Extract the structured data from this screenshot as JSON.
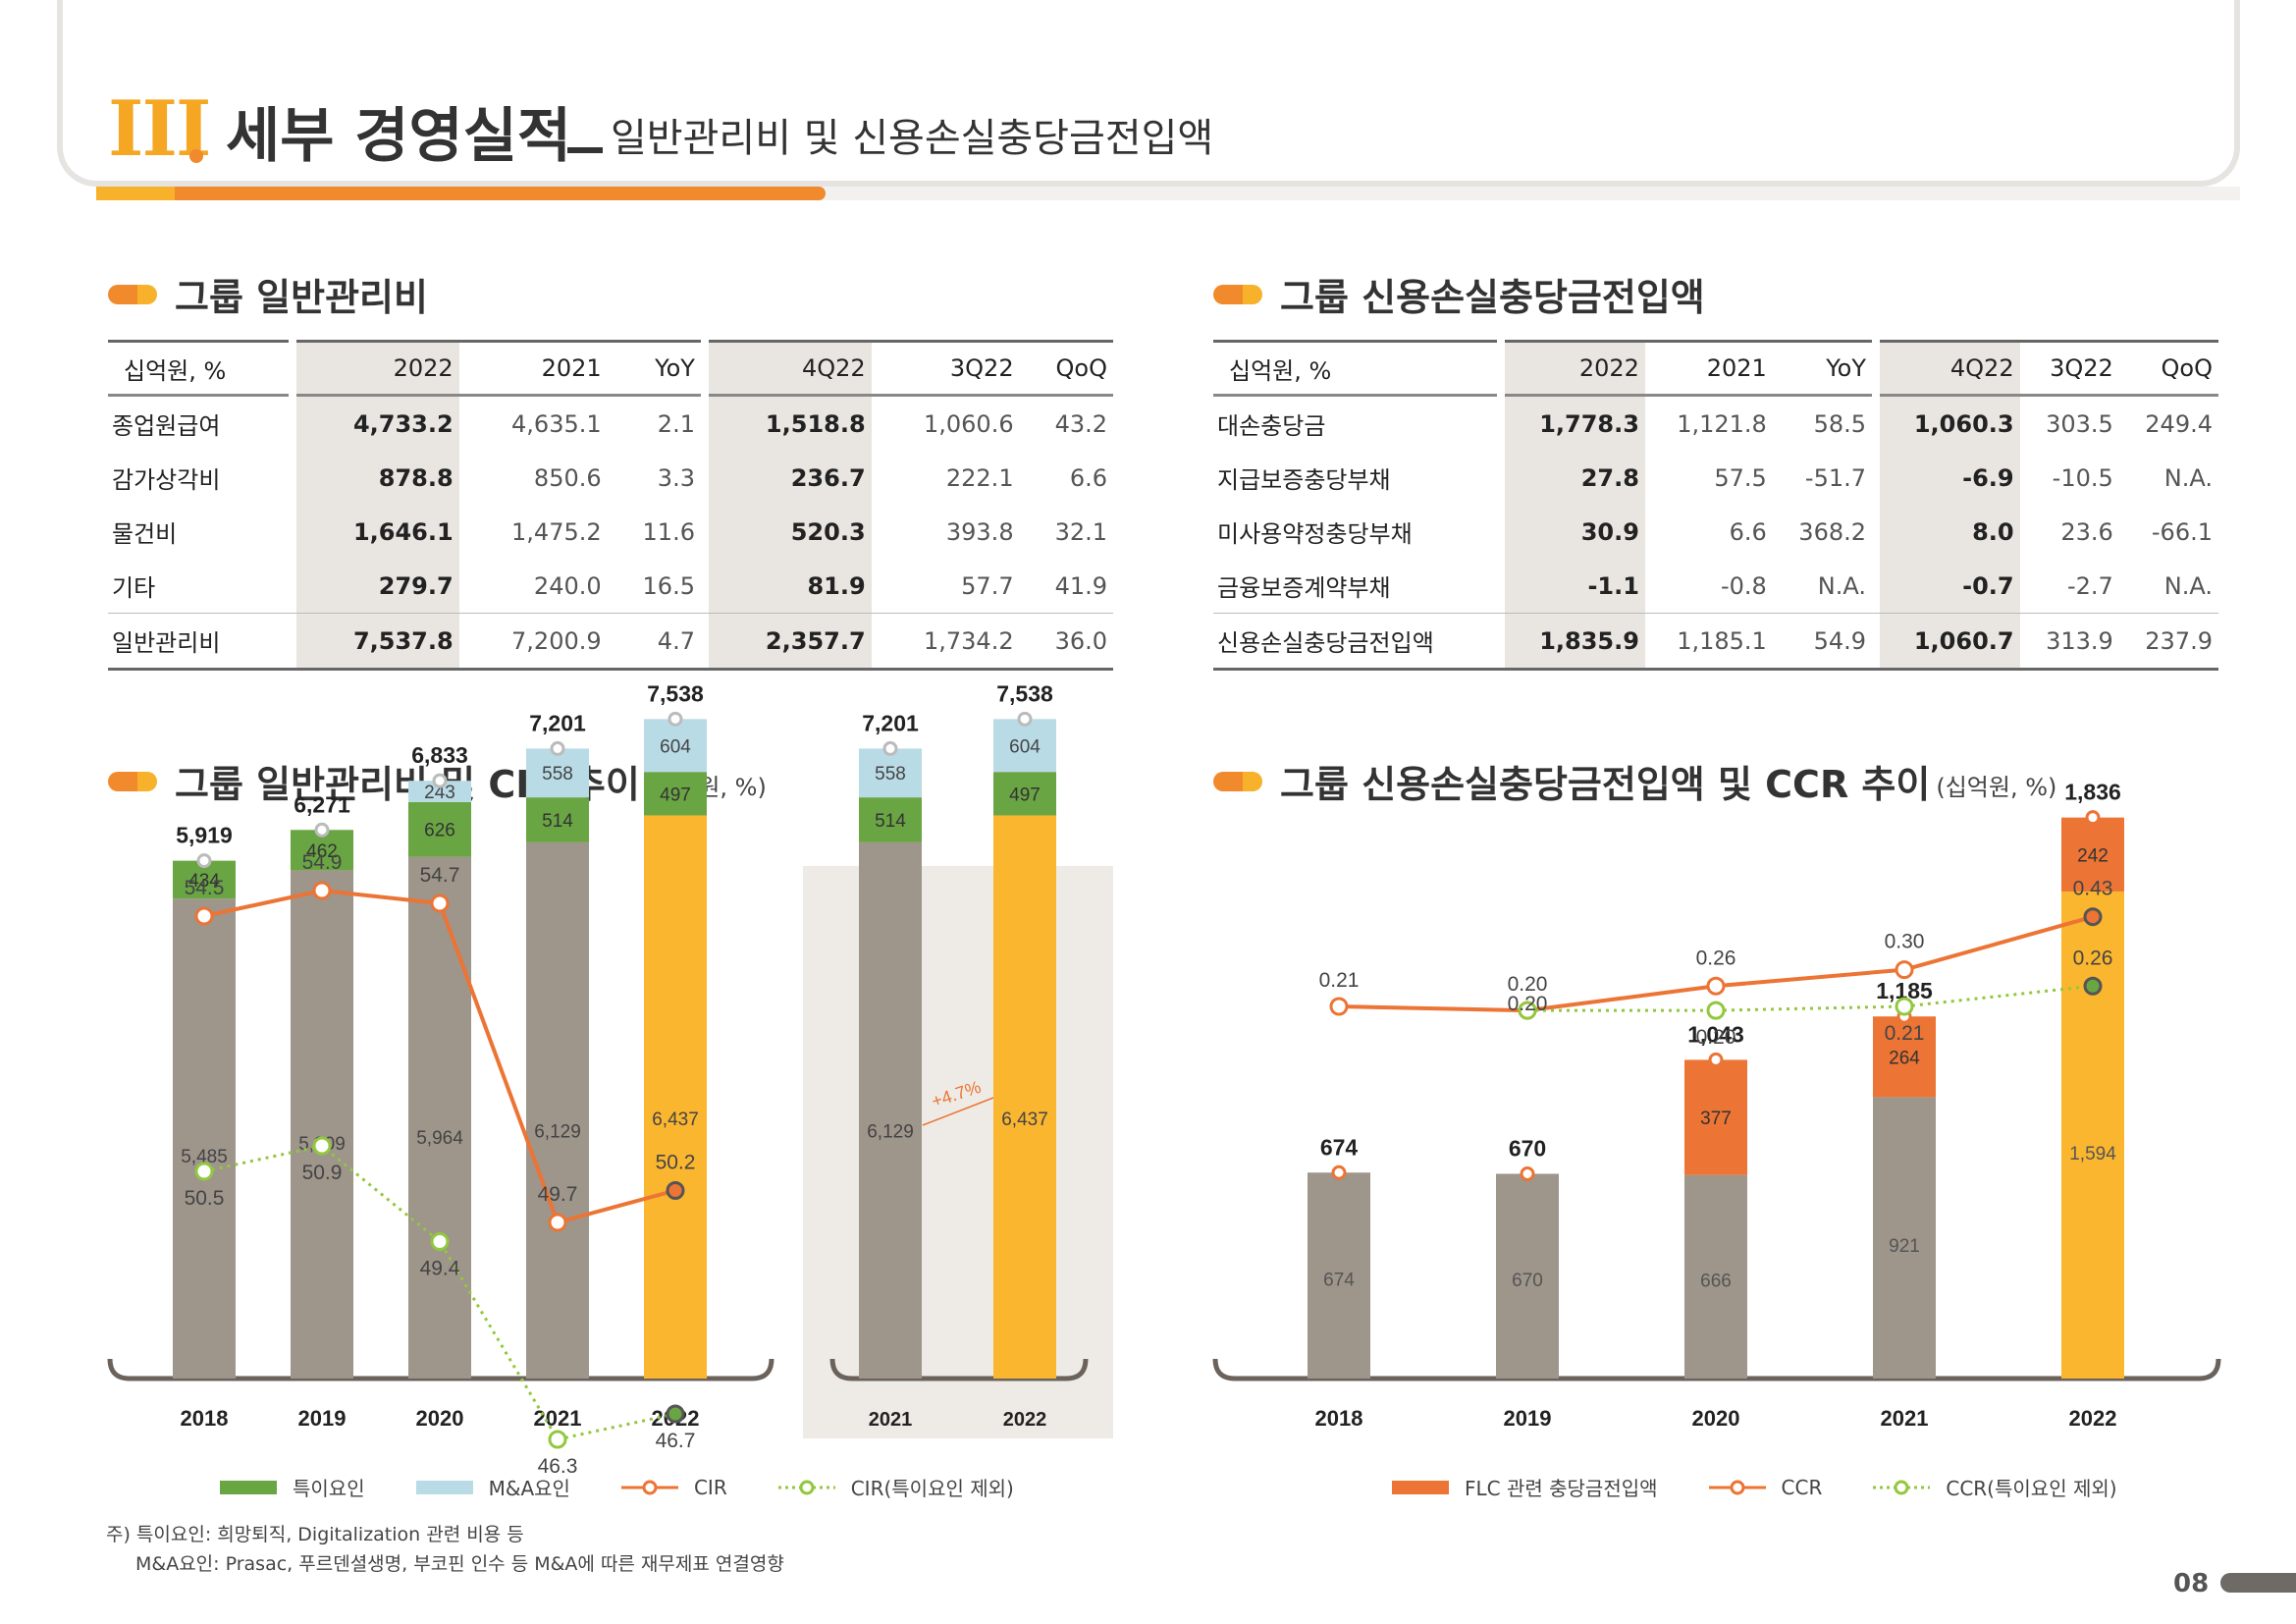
{
  "header": {
    "roman": "III",
    "title": "세부 경영실적",
    "subtitle": "일반관리비 및 신용손실충당금전입액",
    "progress_fraction": 0.34
  },
  "sections": {
    "opex_table_title": "그룹 일반관리비",
    "credit_table_title": "그룹 신용손실충당금전입액",
    "opex_chart_title": "그룹 일반관리비 및 CIR 추이",
    "credit_chart_title": "그룹 신용손실충당금전입액 및 CCR 추이",
    "unit": "(십억원, %)"
  },
  "opex_table": {
    "headers": [
      "십억원, %",
      "2022",
      "2021",
      "YoY",
      "4Q22",
      "3Q22",
      "QoQ"
    ],
    "rows": [
      [
        "종업원급여",
        "4,733.2",
        "4,635.1",
        "2.1",
        "1,518.8",
        "1,060.6",
        "43.2"
      ],
      [
        "감가상각비",
        "878.8",
        "850.6",
        "3.3",
        "236.7",
        "222.1",
        "6.6"
      ],
      [
        "물건비",
        "1,646.1",
        "1,475.2",
        "11.6",
        "520.3",
        "393.8",
        "32.1"
      ],
      [
        "기타",
        "279.7",
        "240.0",
        "16.5",
        "81.9",
        "57.7",
        "41.9"
      ],
      [
        "일반관리비",
        "7,537.8",
        "7,200.9",
        "4.7",
        "2,357.7",
        "1,734.2",
        "36.0"
      ]
    ]
  },
  "credit_table": {
    "headers": [
      "십억원, %",
      "2022",
      "2021",
      "YoY",
      "4Q22",
      "3Q22",
      "QoQ"
    ],
    "rows": [
      [
        "대손충당금",
        "1,778.3",
        "1,121.8",
        "58.5",
        "1,060.3",
        "303.5",
        "249.4"
      ],
      [
        "지급보증충당부채",
        "27.8",
        "57.5",
        "-51.7",
        "-6.9",
        "-10.5",
        "N.A."
      ],
      [
        "미사용약정충당부채",
        "30.9",
        "6.6",
        "368.2",
        "8.0",
        "23.6",
        "-66.1"
      ],
      [
        "금융보증계약부채",
        "-1.1",
        "-0.8",
        "N.A.",
        "-0.7",
        "-2.7",
        "N.A."
      ],
      [
        "신용손실충당금전입액",
        "1,835.9",
        "1,185.1",
        "54.9",
        "1,060.7",
        "313.9",
        "237.9"
      ]
    ]
  },
  "legends": {
    "opex": [
      "특이요인",
      "M&A요인",
      "CIR",
      "CIR(특이요인 제외)"
    ],
    "credit": [
      "FLC 관련 충당금전입액",
      "CCR",
      "CCR(특이요인 제외)"
    ]
  },
  "notes": {
    "line1": "주) 특이요인: 희망퇴직, Digitalization 관련 비용 등",
    "line2": "M&A요인: Prasac, 푸르덴셜생명, 부코핀 인수 등 M&A에 따른 재무제표 연결영향"
  },
  "page_number": "08",
  "colors": {
    "gray": "#9e958b",
    "green": "#6aa544",
    "lightblue": "#b9dbe6",
    "yellow": "#fbb62f",
    "orange": "#ec7434",
    "cir_line": "#ec7434",
    "cir_ex_line": "#92c83e",
    "shade": "#eeebe6"
  },
  "chart_data": [
    {
      "type": "bar",
      "categories": [
        "2018",
        "2019",
        "2020",
        "2021",
        "2022"
      ],
      "series": [
        {
          "name": "",
          "values": [
            5485,
            5809,
            5964,
            6129,
            6437
          ]
        },
        {
          "name": "특이요인",
          "values": [
            434,
            462,
            626,
            514,
            497
          ]
        },
        {
          "name": "M&A요인",
          "values": [
            null,
            null,
            243,
            558,
            604
          ]
        }
      ],
      "totals": [
        5919,
        6271,
        6833,
        7201,
        7538
      ],
      "lines": [
        {
          "name": "CIR",
          "values": [
            54.5,
            54.9,
            54.7,
            49.7,
            50.2
          ]
        },
        {
          "name": "CIR(특이요인 제외)",
          "values": [
            50.5,
            50.9,
            49.4,
            46.3,
            46.7
          ]
        }
      ]
    },
    {
      "type": "bar",
      "categories": [
        "2021",
        "2022"
      ],
      "series": [
        {
          "name": "",
          "values": [
            6129,
            6437
          ]
        },
        {
          "name": "특이요인",
          "values": [
            514,
            497
          ]
        },
        {
          "name": "M&A요인",
          "values": [
            558,
            604
          ]
        }
      ],
      "totals": [
        7201,
        7538
      ],
      "annotation": "+4.7%"
    },
    {
      "type": "bar",
      "categories": [
        "2018",
        "2019",
        "2020",
        "2021",
        "2022"
      ],
      "series": [
        {
          "name": "",
          "values": [
            674,
            670,
            666,
            921,
            1594
          ]
        },
        {
          "name": "FLC 관련 충당금전입액",
          "values": [
            null,
            null,
            377,
            264,
            242
          ]
        }
      ],
      "totals": [
        674,
        670,
        1043,
        1185,
        1836
      ],
      "lines": [
        {
          "name": "CCR",
          "values": [
            0.21,
            0.2,
            0.26,
            0.3,
            0.43
          ]
        },
        {
          "name": "CCR(특이요인 제외)",
          "values": [
            null,
            0.2,
            0.2,
            0.21,
            0.26
          ]
        }
      ]
    }
  ]
}
